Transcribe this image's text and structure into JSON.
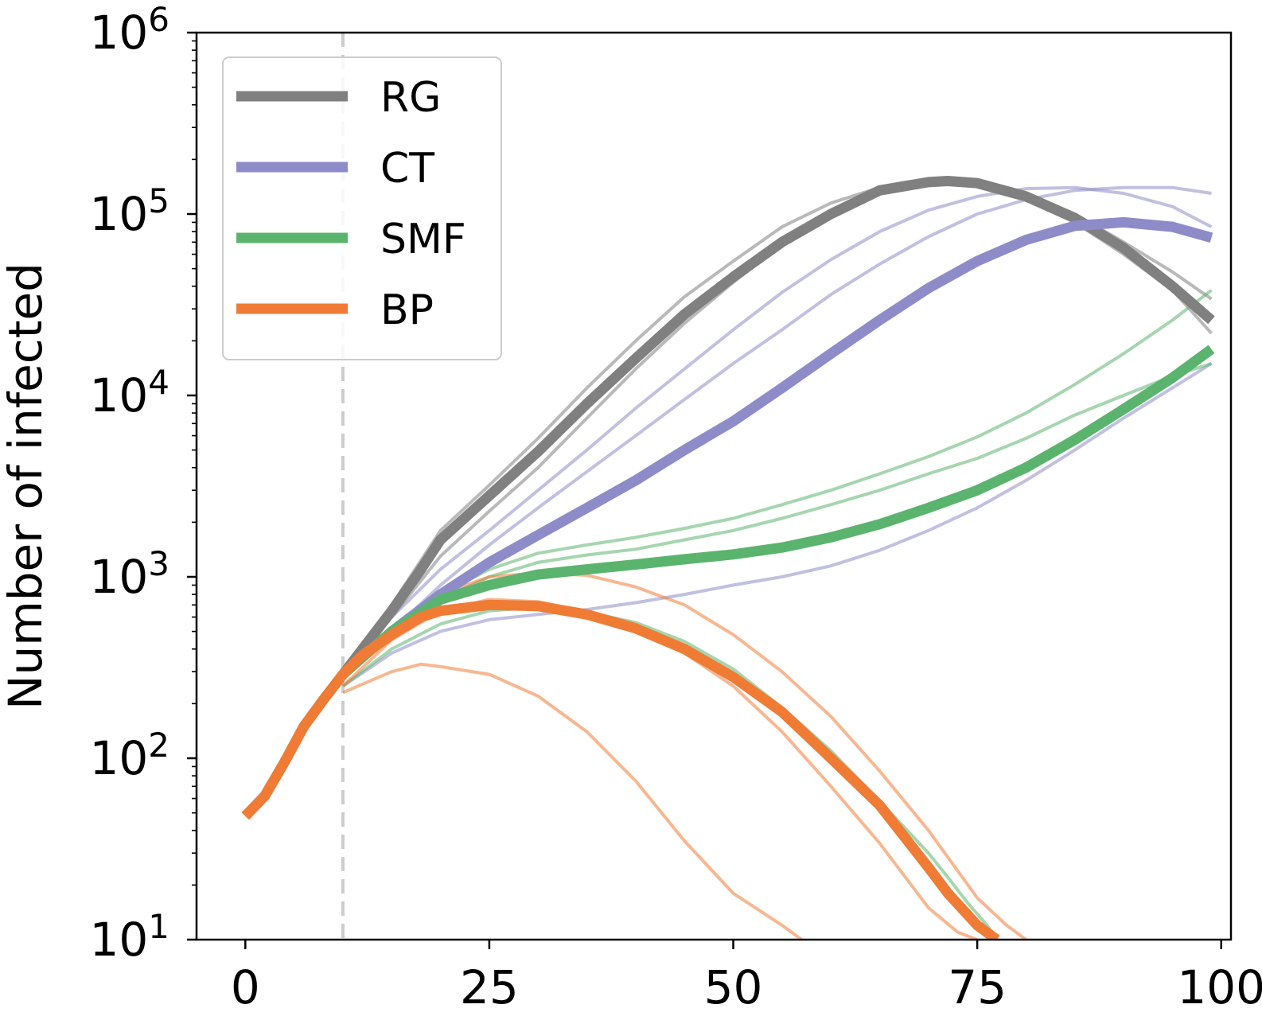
{
  "chart_data": {
    "type": "line",
    "title": "",
    "xlabel": "",
    "ylabel": "Number of infected",
    "yscale": "log",
    "xlim": [
      -5,
      101
    ],
    "ylim": [
      10,
      1000000
    ],
    "xticks": [
      0,
      25,
      50,
      75,
      100
    ],
    "xtick_labels": [
      "0",
      "25",
      "50",
      "75",
      "100"
    ],
    "yticks": [
      {
        "value": 10,
        "base": "10",
        "exp": "1"
      },
      {
        "value": 100,
        "base": "10",
        "exp": "2"
      },
      {
        "value": 1000,
        "base": "10",
        "exp": "3"
      },
      {
        "value": 10000,
        "base": "10",
        "exp": "4"
      },
      {
        "value": 100000,
        "base": "10",
        "exp": "5"
      },
      {
        "value": 1000000,
        "base": "10",
        "exp": "6"
      }
    ],
    "vline": {
      "x": 10,
      "color": "#cccccc",
      "style": "dashed"
    },
    "legend": {
      "position": "top-left",
      "entries": [
        "RG",
        "CT",
        "SMF",
        "BP"
      ]
    },
    "series": [
      {
        "name": "RG",
        "color": "#808080",
        "kind": "mean",
        "x": [
          0,
          2,
          4,
          6,
          8,
          10,
          12,
          15,
          18,
          20,
          25,
          30,
          35,
          40,
          45,
          50,
          55,
          60,
          65,
          70,
          72,
          75,
          80,
          85,
          90,
          95,
          99
        ],
        "y": [
          48,
          62,
          95,
          150,
          210,
          290,
          400,
          650,
          1100,
          1600,
          2800,
          4900,
          9000,
          16000,
          28000,
          45000,
          70000,
          100000,
          135000,
          150000,
          152000,
          148000,
          125000,
          95000,
          65000,
          40000,
          26000
        ]
      },
      {
        "name": "RG",
        "color": "#808080",
        "kind": "run",
        "x": [
          10,
          15,
          20,
          25,
          30,
          35,
          40,
          45,
          50,
          55,
          60,
          65,
          70,
          75,
          80,
          85,
          90,
          95,
          99
        ],
        "y": [
          290,
          700,
          1800,
          3200,
          5800,
          11000,
          20000,
          35000,
          55000,
          85000,
          115000,
          140000,
          150000,
          145000,
          120000,
          90000,
          60000,
          38000,
          22000
        ]
      },
      {
        "name": "RG",
        "color": "#808080",
        "kind": "run",
        "x": [
          10,
          15,
          20,
          25,
          30,
          35,
          40,
          45,
          50,
          55,
          60,
          65,
          70,
          75,
          80,
          85,
          90,
          95,
          99
        ],
        "y": [
          290,
          600,
          1300,
          2300,
          4000,
          7500,
          14000,
          25000,
          42000,
          68000,
          100000,
          130000,
          148000,
          148000,
          130000,
          100000,
          70000,
          48000,
          34000
        ]
      },
      {
        "name": "CT",
        "color": "#8e8cc8",
        "kind": "mean",
        "x": [
          10,
          15,
          20,
          25,
          30,
          35,
          40,
          45,
          50,
          55,
          60,
          65,
          70,
          75,
          80,
          85,
          90,
          95,
          99
        ],
        "y": [
          290,
          500,
          800,
          1200,
          1700,
          2400,
          3400,
          5000,
          7200,
          11000,
          17000,
          26000,
          39000,
          55000,
          72000,
          86000,
          90000,
          85000,
          74000
        ]
      },
      {
        "name": "CT",
        "color": "#8e8cc8",
        "kind": "run",
        "x": [
          10,
          15,
          20,
          25,
          30,
          35,
          40,
          45,
          50,
          55,
          60,
          65,
          70,
          75,
          80,
          85,
          90,
          95,
          99
        ],
        "y": [
          290,
          600,
          1100,
          1800,
          3000,
          5000,
          8500,
          14000,
          23000,
          37000,
          56000,
          80000,
          105000,
          125000,
          138000,
          140000,
          130000,
          110000,
          85000
        ]
      },
      {
        "name": "CT",
        "color": "#8e8cc8",
        "kind": "run",
        "x": [
          10,
          15,
          20,
          25,
          30,
          35,
          40,
          45,
          50,
          55,
          60,
          65,
          70,
          75,
          80,
          85,
          90,
          95,
          99
        ],
        "y": [
          290,
          500,
          900,
          1500,
          2400,
          3800,
          6000,
          9500,
          15000,
          23000,
          36000,
          53000,
          75000,
          100000,
          120000,
          135000,
          140000,
          140000,
          130000
        ]
      },
      {
        "name": "CT",
        "color": "#8e8cc8",
        "kind": "run",
        "x": [
          10,
          15,
          20,
          25,
          30,
          35,
          40,
          45,
          50,
          55,
          60,
          65,
          70,
          75,
          80,
          85,
          90,
          95,
          99
        ],
        "y": [
          250,
          380,
          500,
          580,
          620,
          660,
          720,
          800,
          900,
          1000,
          1150,
          1400,
          1800,
          2400,
          3400,
          5000,
          7500,
          11000,
          15000
        ]
      },
      {
        "name": "SMF",
        "color": "#5bb46e",
        "kind": "mean",
        "x": [
          10,
          15,
          20,
          25,
          30,
          35,
          40,
          45,
          50,
          55,
          60,
          65,
          70,
          75,
          80,
          85,
          90,
          95,
          99
        ],
        "y": [
          290,
          500,
          750,
          900,
          1030,
          1100,
          1170,
          1250,
          1330,
          1450,
          1650,
          1950,
          2400,
          3000,
          4000,
          5700,
          8400,
          12500,
          18000
        ]
      },
      {
        "name": "SMF",
        "color": "#5bb46e",
        "kind": "run",
        "x": [
          10,
          15,
          20,
          25,
          30,
          35,
          40,
          45,
          50,
          55,
          60,
          65,
          70,
          75,
          80,
          85,
          90,
          95,
          99
        ],
        "y": [
          290,
          500,
          800,
          1100,
          1350,
          1500,
          1650,
          1850,
          2100,
          2500,
          3000,
          3700,
          4600,
          5900,
          8000,
          11500,
          17000,
          26000,
          38000
        ]
      },
      {
        "name": "SMF",
        "color": "#5bb46e",
        "kind": "run",
        "x": [
          10,
          15,
          20,
          25,
          30,
          35,
          40,
          45,
          50,
          55,
          60,
          65,
          70,
          75,
          80,
          85,
          90,
          95,
          99
        ],
        "y": [
          290,
          500,
          750,
          1000,
          1200,
          1320,
          1420,
          1600,
          1800,
          2100,
          2500,
          3000,
          3700,
          4500,
          5800,
          7800,
          10000,
          12800,
          15000
        ]
      },
      {
        "name": "SMF",
        "color": "#5bb46e",
        "kind": "run",
        "x": [
          10,
          15,
          20,
          25,
          30,
          35,
          40,
          45,
          50,
          55,
          60,
          65,
          70,
          72,
          74,
          76,
          77
        ],
        "y": [
          250,
          400,
          550,
          650,
          680,
          640,
          560,
          440,
          310,
          190,
          110,
          58,
          30,
          22,
          16,
          12,
          10
        ]
      },
      {
        "name": "BP",
        "color": "#f07b35",
        "kind": "mean",
        "x": [
          0,
          2,
          4,
          6,
          8,
          10,
          12,
          15,
          18,
          20,
          25,
          30,
          35,
          40,
          45,
          50,
          55,
          60,
          65,
          70,
          72,
          75,
          77
        ],
        "y": [
          48,
          62,
          95,
          150,
          210,
          290,
          370,
          480,
          600,
          650,
          700,
          690,
          620,
          520,
          400,
          280,
          180,
          100,
          55,
          25,
          18,
          12,
          10
        ]
      },
      {
        "name": "BP",
        "color": "#f07b35",
        "kind": "run",
        "x": [
          10,
          15,
          20,
          25,
          30,
          35,
          40,
          45,
          50,
          55,
          60,
          65,
          70,
          75,
          78,
          80
        ],
        "y": [
          290,
          520,
          800,
          1000,
          1050,
          1020,
          880,
          700,
          480,
          300,
          170,
          85,
          40,
          17,
          12,
          10
        ]
      },
      {
        "name": "BP",
        "color": "#f07b35",
        "kind": "run",
        "x": [
          10,
          15,
          20,
          25,
          30,
          35,
          40,
          45,
          50,
          55,
          60,
          65,
          70,
          73,
          75
        ],
        "y": [
          250,
          450,
          650,
          750,
          730,
          640,
          520,
          380,
          250,
          140,
          70,
          34,
          15,
          11,
          10
        ]
      },
      {
        "name": "BP",
        "color": "#f07b35",
        "kind": "run",
        "x": [
          10,
          13,
          15,
          18,
          20,
          25,
          30,
          35,
          40,
          45,
          50,
          55,
          57
        ],
        "y": [
          230,
          270,
          300,
          330,
          320,
          290,
          220,
          140,
          75,
          35,
          18,
          12,
          10
        ]
      }
    ]
  }
}
